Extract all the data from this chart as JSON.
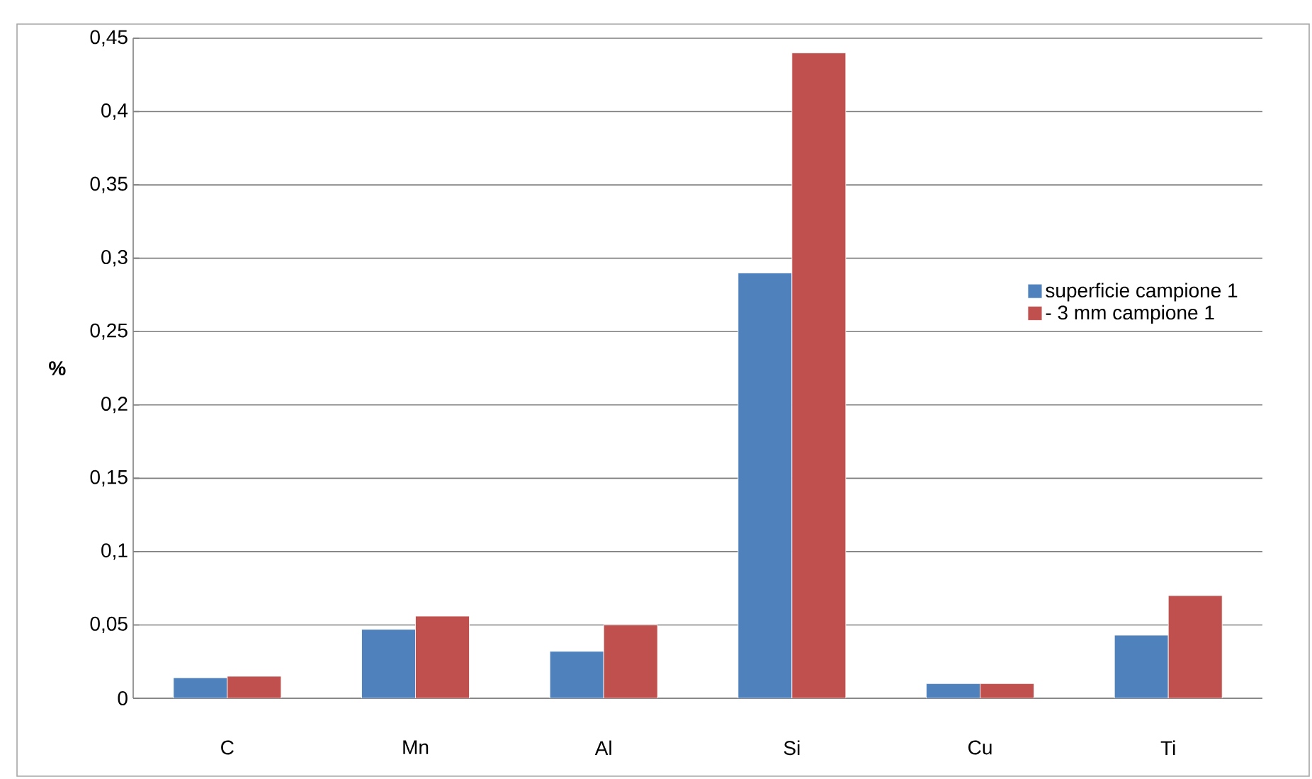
{
  "chart_data": {
    "type": "bar",
    "ylabel": "%",
    "categories": [
      "C",
      "Mn",
      "Al",
      "Si",
      "Cu",
      "Ti"
    ],
    "series": [
      {
        "name": "superficie campione 1",
        "color": "#4f81bd",
        "values": [
          0.014,
          0.047,
          0.032,
          0.29,
          0.01,
          0.043
        ]
      },
      {
        "name": "- 3 mm campione 1",
        "color": "#c0504d",
        "values": [
          0.015,
          0.056,
          0.05,
          0.44,
          0.01,
          0.07
        ]
      }
    ],
    "ylim": [
      0,
      0.45
    ],
    "yticks": [
      {
        "value": 0,
        "label": "0"
      },
      {
        "value": 0.05,
        "label": "0,05"
      },
      {
        "value": 0.1,
        "label": "0,1"
      },
      {
        "value": 0.15,
        "label": "0,15"
      },
      {
        "value": 0.2,
        "label": "0,2"
      },
      {
        "value": 0.25,
        "label": "0,25"
      },
      {
        "value": 0.3,
        "label": "0,3"
      },
      {
        "value": 0.35,
        "label": "0,35"
      },
      {
        "value": 0.4,
        "label": "0,4"
      },
      {
        "value": 0.45,
        "label": "0,45"
      }
    ],
    "grid": "y",
    "legend": "right"
  }
}
